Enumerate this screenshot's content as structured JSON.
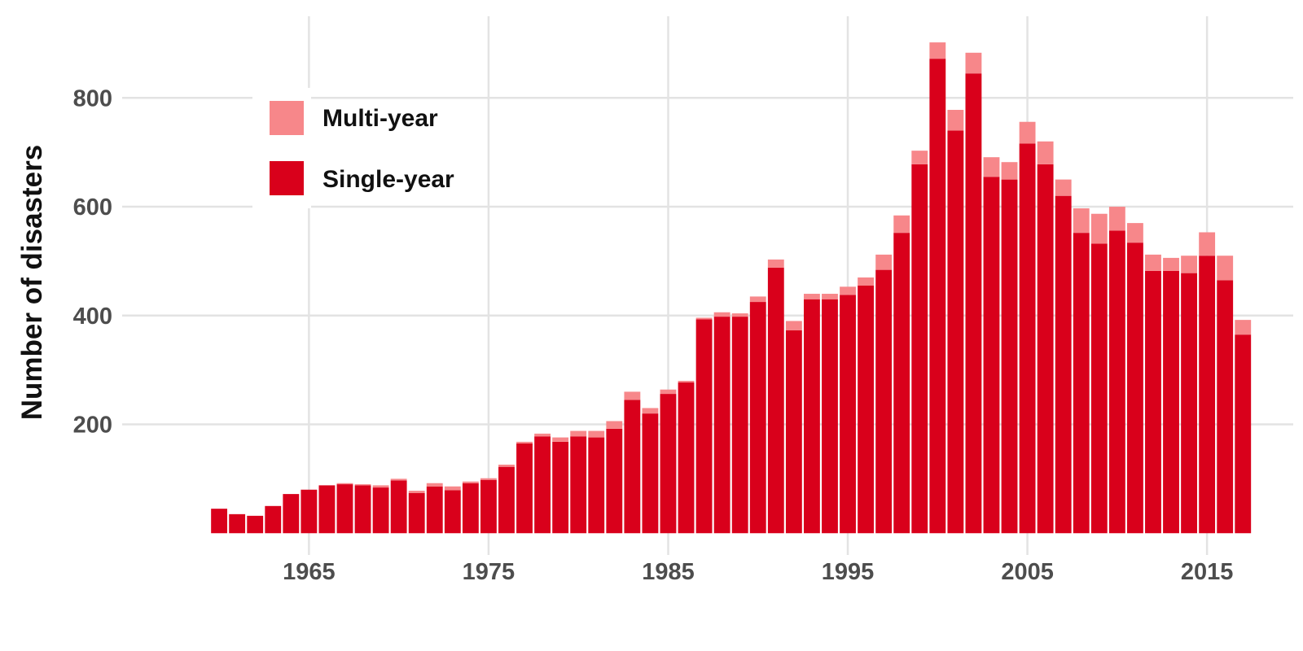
{
  "chart_data": {
    "type": "bar",
    "stacked": true,
    "title": "",
    "xlabel": "",
    "ylabel": "Number of disasters",
    "x": [
      1960,
      1961,
      1962,
      1963,
      1964,
      1965,
      1966,
      1967,
      1968,
      1969,
      1970,
      1971,
      1972,
      1973,
      1974,
      1975,
      1976,
      1977,
      1978,
      1979,
      1980,
      1981,
      1982,
      1983,
      1984,
      1985,
      1986,
      1987,
      1988,
      1989,
      1990,
      1991,
      1992,
      1993,
      1994,
      1995,
      1996,
      1997,
      1998,
      1999,
      2000,
      2001,
      2002,
      2003,
      2004,
      2005,
      2006,
      2007,
      2008,
      2009,
      2010,
      2011,
      2012,
      2013,
      2014,
      2015,
      2016,
      2017
    ],
    "xlim": [
      1954.6,
      2019.8
    ],
    "ylim": [
      -40,
      950
    ],
    "x_ticks": [
      1965,
      1975,
      1985,
      1995,
      2005,
      2015
    ],
    "x_tick_labels": [
      "1965",
      "1975",
      "1985",
      "1995",
      "2005",
      "2015"
    ],
    "y_ticks": [
      200,
      400,
      600,
      800
    ],
    "y_tick_labels": [
      "200",
      "400",
      "600",
      "800"
    ],
    "grid": true,
    "legend_position": "top-left",
    "series": [
      {
        "name": "Single-year",
        "color": "#d9001b",
        "values": [
          45,
          35,
          32,
          50,
          72,
          80,
          88,
          90,
          88,
          84,
          97,
          74,
          86,
          79,
          92,
          98,
          122,
          165,
          178,
          168,
          178,
          176,
          192,
          245,
          220,
          256,
          277,
          393,
          398,
          398,
          425,
          488,
          373,
          430,
          430,
          438,
          455,
          484,
          552,
          678,
          872,
          740,
          845,
          655,
          650,
          716,
          678,
          620,
          552,
          532,
          556,
          534,
          482,
          482,
          478,
          510,
          465,
          365
        ]
      },
      {
        "name": "Multi-year",
        "color": "#f7878a",
        "values": [
          0,
          0,
          0,
          0,
          0,
          0,
          0,
          2,
          2,
          4,
          3,
          4,
          6,
          7,
          3,
          3,
          4,
          3,
          5,
          8,
          10,
          12,
          14,
          15,
          10,
          8,
          3,
          3,
          8,
          6,
          10,
          15,
          17,
          10,
          10,
          15,
          15,
          28,
          32,
          25,
          30,
          38,
          38,
          36,
          32,
          40,
          42,
          30,
          45,
          55,
          44,
          36,
          30,
          24,
          32,
          43,
          45,
          27
        ]
      }
    ]
  }
}
